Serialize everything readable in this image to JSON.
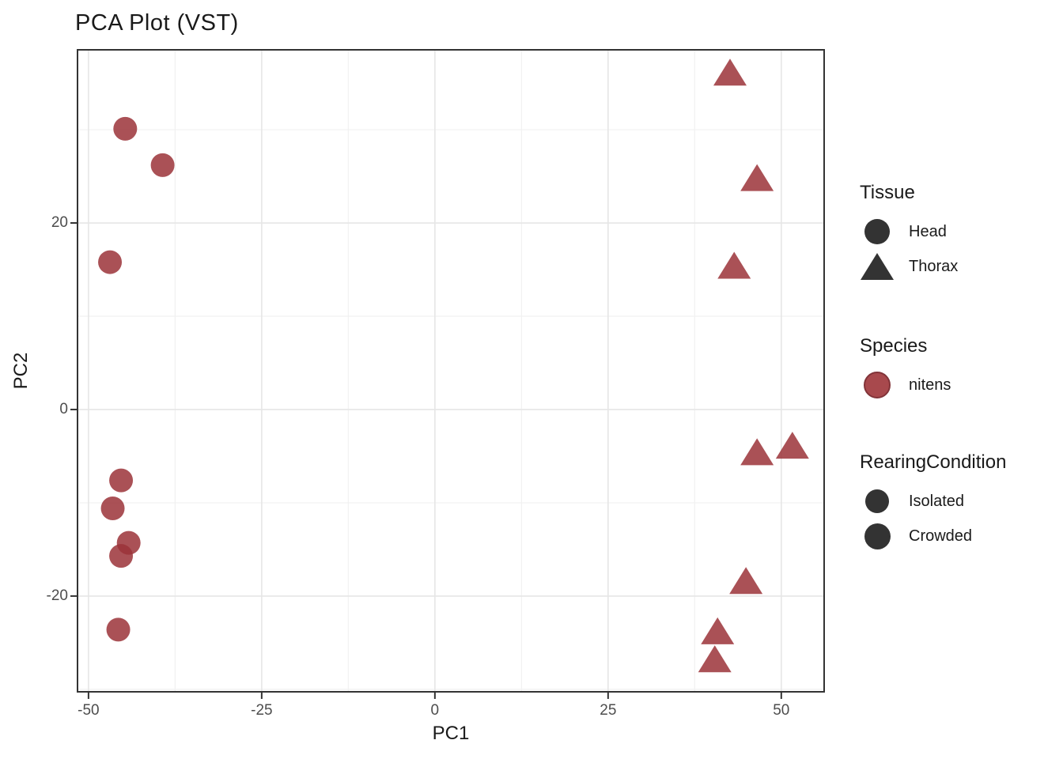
{
  "title": "PCA Plot (VST)",
  "axes": {
    "x": {
      "label": "PC1",
      "ticks": [
        "-50",
        "-25",
        "0",
        "25",
        "50"
      ],
      "tick_values": [
        -50,
        -25,
        0,
        25,
        50
      ],
      "minor_tick_values": [
        -37.5,
        -12.5,
        12.5,
        37.5
      ],
      "range": [
        -51.7,
        56.3
      ]
    },
    "y": {
      "label": "PC2",
      "ticks": [
        "20",
        "0",
        "-20"
      ],
      "tick_values": [
        20,
        0,
        -20
      ],
      "minor_tick_values": [
        30,
        10,
        -10,
        -30
      ],
      "range": [
        -30.35,
        38.65
      ]
    }
  },
  "legend": {
    "groups": [
      {
        "title": "Tissue",
        "items": [
          {
            "label": "Head",
            "glyph": "circle-dark"
          },
          {
            "label": "Thorax",
            "glyph": "triangle-dark"
          }
        ]
      },
      {
        "title": "Species",
        "items": [
          {
            "label": "nitens",
            "glyph": "circle-red"
          }
        ]
      },
      {
        "title": "RearingCondition",
        "items": [
          {
            "label": "Isolated",
            "glyph": "circle-dark-small"
          },
          {
            "label": "Crowded",
            "glyph": "circle-dark-large"
          }
        ]
      }
    ]
  },
  "colors": {
    "point_fill": "#9B3338",
    "point_opacity": 0.85,
    "legend_glyph_dark": "#333333",
    "species_red": "#A8494D",
    "species_red_edge": "#823439",
    "grid_major": "#E6E6E6",
    "grid_minor": "#F1F1F1",
    "panel_border": "#333333",
    "tick_mark": "#333333",
    "tick_text": "#4D4D4D",
    "title_text": "#1A1A1A"
  },
  "chart_data": {
    "type": "scatter",
    "title": "PCA Plot (VST)",
    "xlabel": "PC1",
    "ylabel": "PC2",
    "xlim": [
      -51.7,
      56.3
    ],
    "ylim": [
      -30.35,
      38.65
    ],
    "grid": true,
    "legend_position": "right",
    "series": [
      {
        "name": "Head",
        "shape": "circle",
        "species": "nitens",
        "points": [
          {
            "pc1": -44.7,
            "pc2": 30.1
          },
          {
            "pc1": -39.3,
            "pc2": 26.2
          },
          {
            "pc1": -46.9,
            "pc2": 15.8
          },
          {
            "pc1": -45.3,
            "pc2": -7.6
          },
          {
            "pc1": -46.5,
            "pc2": -10.6
          },
          {
            "pc1": -44.2,
            "pc2": -14.3
          },
          {
            "pc1": -45.3,
            "pc2": -15.7
          },
          {
            "pc1": -45.7,
            "pc2": -23.6
          }
        ]
      },
      {
        "name": "Thorax",
        "shape": "triangle",
        "species": "nitens",
        "points": [
          {
            "pc1": 42.6,
            "pc2": 36.0
          },
          {
            "pc1": 46.5,
            "pc2": 24.7
          },
          {
            "pc1": 43.2,
            "pc2": 15.3
          },
          {
            "pc1": 46.5,
            "pc2": -4.7
          },
          {
            "pc1": 51.6,
            "pc2": -4.0
          },
          {
            "pc1": 44.9,
            "pc2": -18.5
          },
          {
            "pc1": 40.8,
            "pc2": -23.9
          },
          {
            "pc1": 40.4,
            "pc2": -26.9
          }
        ]
      }
    ]
  }
}
